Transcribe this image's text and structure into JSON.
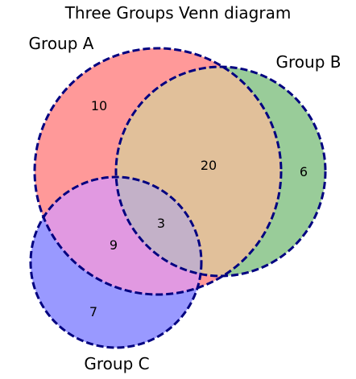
{
  "diagram": {
    "title": "Three Groups Venn diagram",
    "sets": [
      {
        "name": "Group A",
        "color": "#ff9999"
      },
      {
        "name": "Group B",
        "color": "#99cc99"
      },
      {
        "name": "Group C",
        "color": "#9999ff"
      }
    ],
    "regions": {
      "a_only": "10",
      "b_only": "6",
      "c_only": "7",
      "ab_only": "20",
      "ac_only": "9",
      "abc": "3"
    },
    "outline_color": "#000080",
    "overlap_colors": {
      "ab": "#e1c09a",
      "ac": "#e199e1",
      "abc": "#c3b1c8"
    }
  }
}
